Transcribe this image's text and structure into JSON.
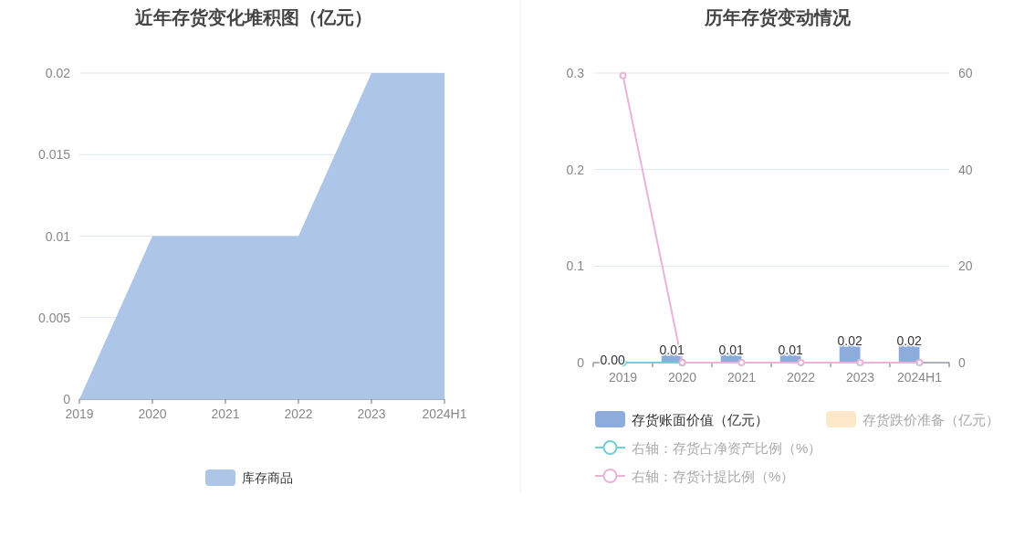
{
  "chart_data": [
    {
      "type": "area",
      "title": "近年存货变化堆积图（亿元）",
      "categories": [
        "2019",
        "2020",
        "2021",
        "2022",
        "2023",
        "2024H1"
      ],
      "ylim": [
        0,
        0.02
      ],
      "yticks": [
        0,
        0.005,
        0.01,
        0.015,
        0.02
      ],
      "grid": "y",
      "legend": "bottom",
      "series": [
        {
          "name": "库存商品",
          "color": "#adc5e6",
          "values": [
            0,
            0.01,
            0.01,
            0.01,
            0.02,
            0.02
          ]
        }
      ]
    },
    {
      "type": "bar",
      "title": "历年存货变动情况",
      "categories": [
        "2019",
        "2020",
        "2021",
        "2022",
        "2023",
        "2024H1"
      ],
      "ylim": [
        0,
        0.3
      ],
      "yticks": [
        0,
        0.1,
        0.2,
        0.3
      ],
      "y2lim": [
        0,
        60
      ],
      "y2ticks": [
        0,
        20,
        40,
        60
      ],
      "grid": "y",
      "legend": "bottom",
      "marker": "circle",
      "series": [
        {
          "name": "存货账面价值（亿元）",
          "type": "bar",
          "color": "#8eacdb",
          "values": [
            0,
            0.01,
            0.01,
            0.01,
            0.02,
            0.02
          ],
          "value_labels": [
            "0.00",
            "0.01",
            "0.01",
            "0.01",
            "0.02",
            "0.02"
          ]
        },
        {
          "name": "存货跌价准备（亿元）",
          "type": "bar",
          "color": "#fde9c9",
          "values": [
            null,
            null,
            null,
            null,
            null,
            null
          ]
        },
        {
          "name": "右轴：存货占净资产比例（%）",
          "type": "line",
          "axis": "y2",
          "color": "#6fd0d6",
          "values": [
            0,
            0,
            null,
            null,
            null,
            null
          ]
        },
        {
          "name": "右轴：存货计提比例（%）",
          "type": "line",
          "axis": "y2",
          "color": "#e8b4d8",
          "values": [
            59.5,
            0,
            0,
            0,
            0,
            0
          ]
        }
      ]
    }
  ]
}
